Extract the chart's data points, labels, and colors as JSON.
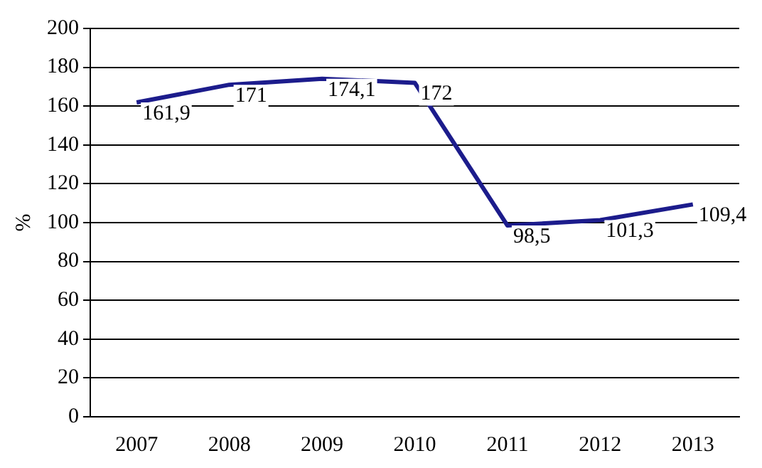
{
  "chart_data": {
    "type": "line",
    "ylabel": "%",
    "categories": [
      "2007",
      "2008",
      "2009",
      "2010",
      "2011",
      "2012",
      "2013"
    ],
    "series": [
      {
        "color": "#1c1c8c",
        "values": [
          161.9,
          171,
          174.1,
          172,
          98.5,
          101.3,
          109.4
        ],
        "value_labels": [
          "161,9",
          "171",
          "174,1",
          "172",
          "98,5",
          "101,3",
          "109,4"
        ]
      }
    ],
    "ylim": [
      0,
      200
    ],
    "yticks": [
      0,
      20,
      40,
      60,
      80,
      100,
      120,
      140,
      160,
      180,
      200
    ],
    "grid": "y",
    "legend": false,
    "marker": "none",
    "line_style": "solid"
  }
}
